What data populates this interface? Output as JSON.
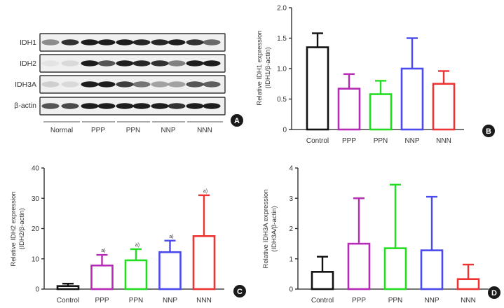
{
  "blot": {
    "bands": [
      "IDH1",
      "IDH2",
      "IDH3A",
      "β-actin"
    ],
    "groups": [
      "Normal",
      "PPP",
      "PPN",
      "NNP",
      "NNN"
    ],
    "label": "A"
  },
  "chart_data": [
    {
      "id": "B",
      "type": "bar",
      "label": "B",
      "categories": [
        "Control",
        "PPP",
        "PPN",
        "NNP",
        "NNN"
      ],
      "values": [
        1.35,
        0.67,
        0.58,
        1.0,
        0.75
      ],
      "errors": [
        0.23,
        0.24,
        0.22,
        0.5,
        0.21
      ],
      "colors": [
        "#111111",
        "#b52bb5",
        "#22dd22",
        "#4a4aee",
        "#ee3333"
      ],
      "ylabel_lines": [
        "Relative IDH1 expression",
        "(IDH1/β-actin)"
      ],
      "ylim": [
        0,
        2.0
      ],
      "yticks": [
        0,
        0.5,
        1.0,
        1.5,
        2.0
      ],
      "ytick_labels": [
        "0",
        "0.5",
        "1.0",
        "1.5",
        "2.0"
      ],
      "annotations": [
        "",
        "",
        "",
        "",
        ""
      ]
    },
    {
      "id": "C",
      "type": "bar",
      "label": "C",
      "categories": [
        "Control",
        "PPP",
        "PPN",
        "NNP",
        "NNN"
      ],
      "values": [
        1.0,
        7.8,
        9.5,
        12.2,
        17.5
      ],
      "errors": [
        0.8,
        3.5,
        3.7,
        3.8,
        13.5
      ],
      "colors": [
        "#111111",
        "#b52bb5",
        "#22dd22",
        "#4a4aee",
        "#ee3333"
      ],
      "ylabel_lines": [
        "Relative IDH2 expression",
        "(IDH2/β-actin)"
      ],
      "ylim": [
        0,
        40
      ],
      "yticks": [
        0,
        10,
        20,
        30,
        40
      ],
      "ytick_labels": [
        "0",
        "10",
        "20",
        "30",
        "40"
      ],
      "annotations": [
        "",
        "a)",
        "a)",
        "a)",
        "a)"
      ]
    },
    {
      "id": "D",
      "type": "bar",
      "label": "D",
      "categories": [
        "Control",
        "PPP",
        "PPN",
        "NNP",
        "NNN"
      ],
      "values": [
        0.57,
        1.5,
        1.35,
        1.28,
        0.33
      ],
      "errors": [
        0.5,
        1.5,
        2.1,
        1.77,
        0.48
      ],
      "colors": [
        "#111111",
        "#b52bb5",
        "#22dd22",
        "#4a4aee",
        "#ee3333"
      ],
      "ylabel_lines": [
        "Relative IDH3A expression",
        "(IDH3A/β-actin)"
      ],
      "ylim": [
        0,
        4
      ],
      "yticks": [
        0,
        1,
        2,
        3,
        4
      ],
      "ytick_labels": [
        "0",
        "1",
        "2",
        "3",
        "4"
      ],
      "annotations": [
        "",
        "",
        "",
        "",
        ""
      ]
    }
  ]
}
